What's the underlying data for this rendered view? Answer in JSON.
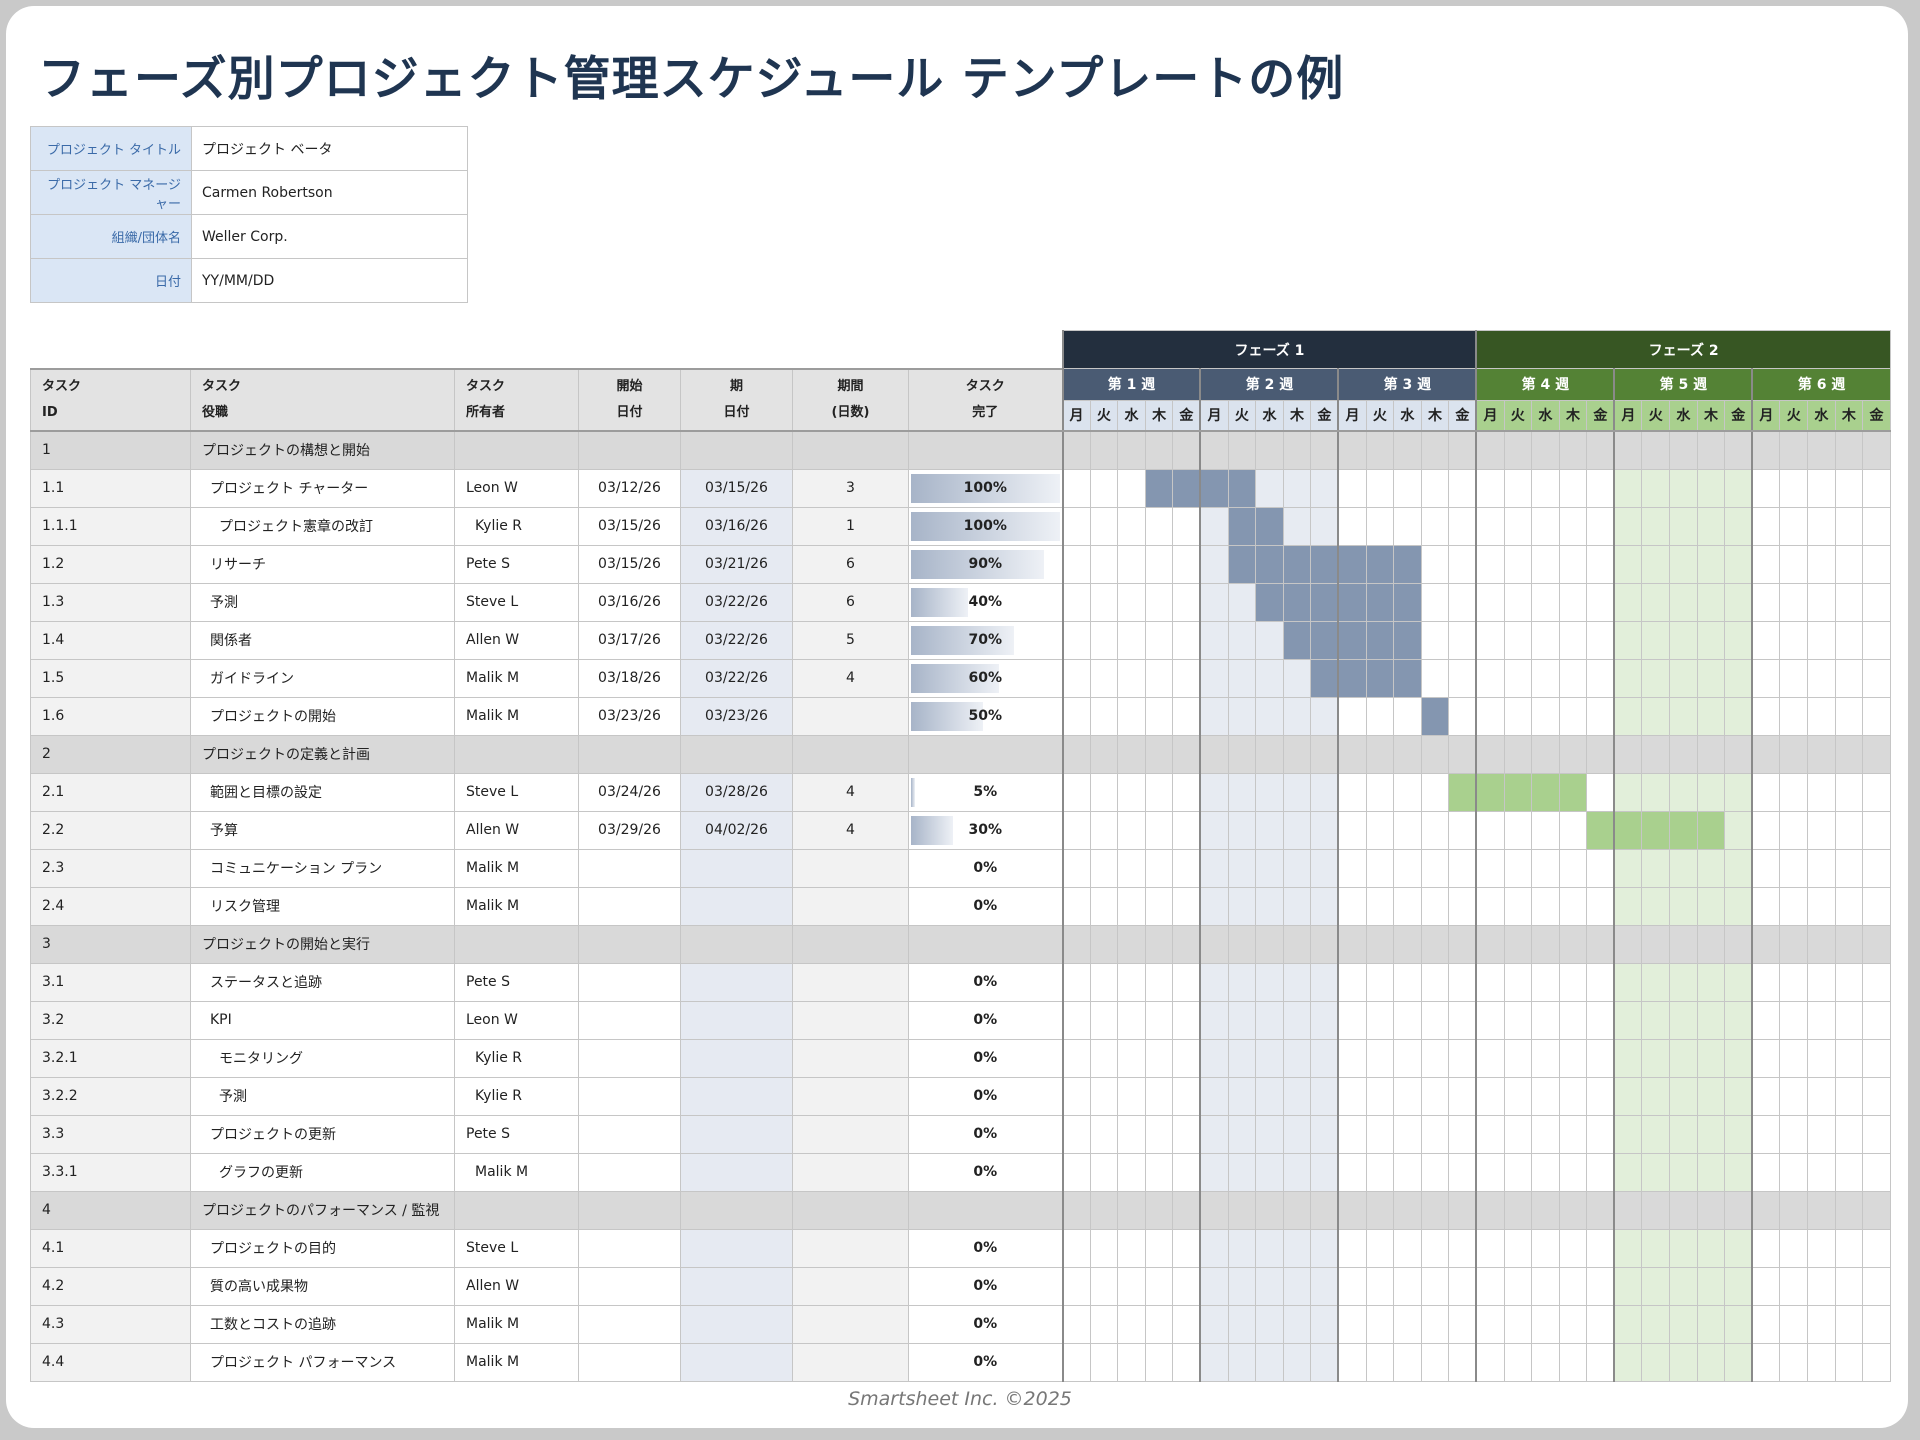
{
  "page_title": "フェーズ別プロジェクト管理スケジュール テンプレートの例",
  "info": [
    {
      "label": "プロジェクト タイトル",
      "value": "プロジェクト ベータ"
    },
    {
      "label": "プロジェクト マネージャー",
      "value": "Carmen Robertson"
    },
    {
      "label": "組織/団体名",
      "value": "Weller Corp."
    },
    {
      "label": "日付",
      "value": "YY/MM/DD"
    }
  ],
  "headers": {
    "id": [
      "タスク",
      "ID"
    ],
    "name": [
      "タスク",
      "役職"
    ],
    "owner": [
      "タスク",
      "所有者"
    ],
    "start": [
      "開始",
      "日付"
    ],
    "due": [
      "期",
      "日付"
    ],
    "duration": [
      "期間",
      "(日数)"
    ],
    "done": [
      "タスク",
      "完了"
    ]
  },
  "phases": [
    "フェーズ 1",
    "フェーズ 2"
  ],
  "weeks": [
    "第 1 週",
    "第 2 週",
    "第 3 週",
    "第 4 週",
    "第 5 週",
    "第 6 週"
  ],
  "days": [
    "月",
    "火",
    "水",
    "木",
    "金"
  ],
  "colors": {
    "phase1": "#232f3e",
    "phase2": "#375623",
    "bar1": "#8496b0",
    "bar2": "#a9d08e"
  },
  "rows": [
    {
      "id": "1",
      "name": "プロジェクトの構想と開始",
      "phase": true
    },
    {
      "id": "1.1",
      "name": "プロジェクト チャーター",
      "owner": "Leon W",
      "start": "03/12/26",
      "due": "03/15/26",
      "duration": "3",
      "done": "100%",
      "progress": 1.0,
      "indent": 1,
      "bar": [
        4,
        7
      ],
      "barcolor": 1
    },
    {
      "id": "1.1.1",
      "name": "プロジェクト憲章の改訂",
      "owner": "Kylie R",
      "start": "03/15/26",
      "due": "03/16/26",
      "duration": "1",
      "done": "100%",
      "progress": 1.0,
      "indent": 2,
      "bar": [
        7,
        8
      ],
      "barcolor": 1
    },
    {
      "id": "1.2",
      "name": "リサーチ",
      "owner": "Pete S",
      "start": "03/15/26",
      "due": "03/21/26",
      "duration": "6",
      "done": "90%",
      "progress": 0.9,
      "indent": 1,
      "bar": [
        7,
        13
      ],
      "barcolor": 1
    },
    {
      "id": "1.3",
      "name": "予測",
      "owner": "Steve L",
      "start": "03/16/26",
      "due": "03/22/26",
      "duration": "6",
      "done": "40%",
      "progress": 0.4,
      "indent": 1,
      "bar": [
        8,
        13
      ],
      "barcolor": 1
    },
    {
      "id": "1.4",
      "name": "関係者",
      "owner": "Allen W",
      "start": "03/17/26",
      "due": "03/22/26",
      "duration": "5",
      "done": "70%",
      "progress": 0.7,
      "indent": 1,
      "bar": [
        9,
        13
      ],
      "barcolor": 1
    },
    {
      "id": "1.5",
      "name": "ガイドライン",
      "owner": "Malik M",
      "start": "03/18/26",
      "due": "03/22/26",
      "duration": "4",
      "done": "60%",
      "progress": 0.6,
      "indent": 1,
      "bar": [
        10,
        13
      ],
      "barcolor": 1
    },
    {
      "id": "1.6",
      "name": "プロジェクトの開始",
      "owner": "Malik M",
      "start": "03/23/26",
      "due": "03/23/26",
      "duration": "",
      "done": "50%",
      "progress": 0.5,
      "indent": 1,
      "bar": [
        14,
        14
      ],
      "barcolor": 1
    },
    {
      "id": "2",
      "name": "プロジェクトの定義と計画",
      "phase": true
    },
    {
      "id": "2.1",
      "name": "範囲と目標の設定",
      "owner": "Steve L",
      "start": "03/24/26",
      "due": "03/28/26",
      "duration": "4",
      "done": "5%",
      "progress": 0.05,
      "indent": 1,
      "bar": [
        15,
        19
      ],
      "barcolor": 2
    },
    {
      "id": "2.2",
      "name": "予算",
      "owner": "Allen W",
      "start": "03/29/26",
      "due": "04/02/26",
      "duration": "4",
      "done": "30%",
      "progress": 0.3,
      "indent": 1,
      "bar": [
        20,
        24
      ],
      "barcolor": 2
    },
    {
      "id": "2.3",
      "name": "コミュニケーション プラン",
      "owner": "Malik M",
      "start": "",
      "due": "",
      "duration": "",
      "done": "0%",
      "progress": 0,
      "indent": 1
    },
    {
      "id": "2.4",
      "name": "リスク管理",
      "owner": "Malik M",
      "start": "",
      "due": "",
      "duration": "",
      "done": "0%",
      "progress": 0,
      "indent": 1
    },
    {
      "id": "3",
      "name": "プロジェクトの開始と実行",
      "phase": true
    },
    {
      "id": "3.1",
      "name": "ステータスと追跡",
      "owner": "Pete S",
      "start": "",
      "due": "",
      "duration": "",
      "done": "0%",
      "progress": 0,
      "indent": 1
    },
    {
      "id": "3.2",
      "name": "KPI",
      "owner": "Leon W",
      "start": "",
      "due": "",
      "duration": "",
      "done": "0%",
      "progress": 0,
      "indent": 1
    },
    {
      "id": "3.2.1",
      "name": "モニタリング",
      "owner": "Kylie R",
      "start": "",
      "due": "",
      "duration": "",
      "done": "0%",
      "progress": 0,
      "indent": 2
    },
    {
      "id": "3.2.2",
      "name": "予測",
      "owner": "Kylie R",
      "start": "",
      "due": "",
      "duration": "",
      "done": "0%",
      "progress": 0,
      "indent": 2
    },
    {
      "id": "3.3",
      "name": "プロジェクトの更新",
      "owner": "Pete S",
      "start": "",
      "due": "",
      "duration": "",
      "done": "0%",
      "progress": 0,
      "indent": 1
    },
    {
      "id": "3.3.1",
      "name": "グラフの更新",
      "owner": "Malik M",
      "start": "",
      "due": "",
      "duration": "",
      "done": "0%",
      "progress": 0,
      "indent": 2
    },
    {
      "id": "4",
      "name": "プロジェクトのパフォーマンス / 監視",
      "phase": true
    },
    {
      "id": "4.1",
      "name": "プロジェクトの目的",
      "owner": "Steve L",
      "start": "",
      "due": "",
      "duration": "",
      "done": "0%",
      "progress": 0,
      "indent": 1
    },
    {
      "id": "4.2",
      "name": "質の高い成果物",
      "owner": "Allen W",
      "start": "",
      "due": "",
      "duration": "",
      "done": "0%",
      "progress": 0,
      "indent": 1
    },
    {
      "id": "4.3",
      "name": "工数とコストの追跡",
      "owner": "Malik M",
      "start": "",
      "due": "",
      "duration": "",
      "done": "0%",
      "progress": 0,
      "indent": 1
    },
    {
      "id": "4.4",
      "name": "プロジェクト パフォーマンス",
      "owner": "Malik M",
      "start": "",
      "due": "",
      "duration": "",
      "done": "0%",
      "progress": 0,
      "indent": 1
    }
  ],
  "footer": "Smartsheet Inc. ©2025"
}
